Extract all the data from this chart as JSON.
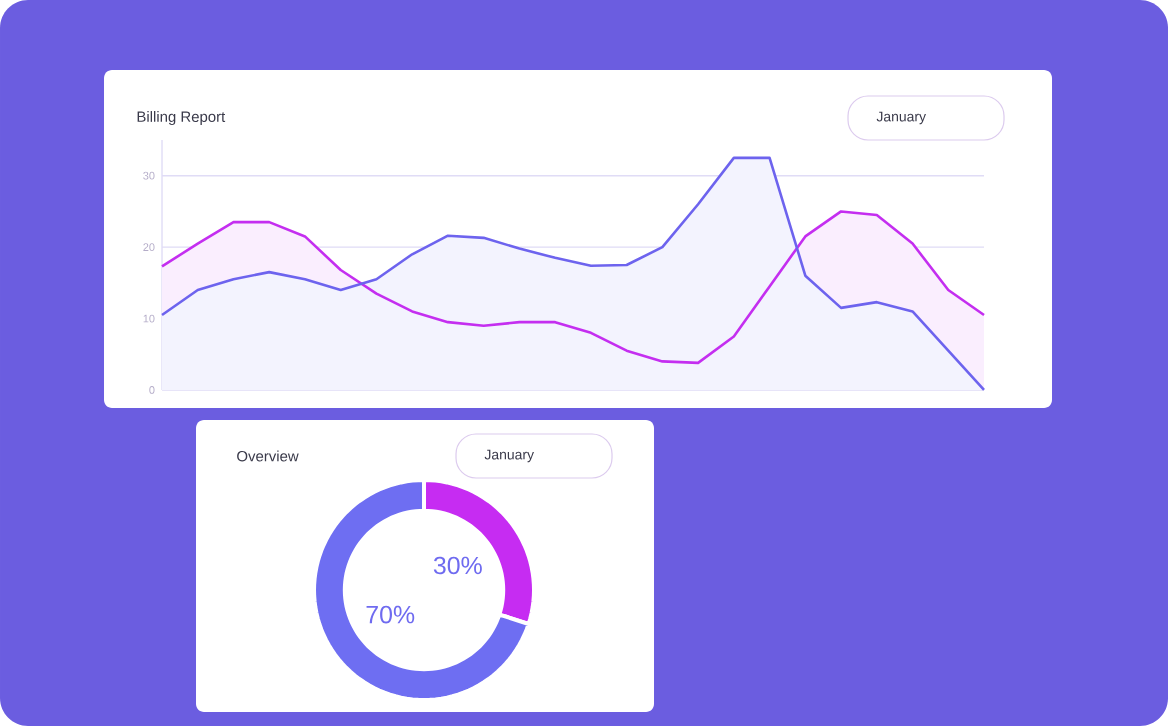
{
  "chart_data": [
    {
      "type": "line",
      "title": "Billing Report",
      "annotations": [
        "January"
      ],
      "categories": [
        null,
        null,
        null,
        null,
        null,
        null,
        null,
        null,
        null,
        null,
        null,
        null,
        null,
        null,
        null,
        null,
        null,
        null,
        null,
        null,
        null,
        null,
        null,
        null
      ],
      "ylim": [
        0,
        35
      ],
      "yticks": [
        0,
        10,
        20,
        30
      ],
      "grid": "y",
      "tick_labels": "y",
      "series": [
        {
          "type": "area",
          "color": "#c42ef0",
          "values": [
            17.3,
            20.5,
            23.5,
            23.5,
            21.5,
            16.8,
            13.5,
            11,
            9.5,
            9,
            9.5,
            9.5,
            8,
            5.5,
            4,
            3.8,
            7.5,
            14.5,
            21.5,
            25,
            24.5,
            20.5,
            14,
            10.5
          ]
        },
        {
          "type": "area",
          "color": "#6d63ee",
          "values": [
            10.5,
            14,
            15.5,
            16.5,
            15.5,
            14,
            15.5,
            19,
            21.6,
            21.3,
            19.8,
            18.5,
            17.4,
            17.5,
            20,
            26,
            32.5,
            32.5,
            16,
            11.5,
            12.3,
            11,
            5.5,
            0
          ]
        }
      ]
    },
    {
      "type": "donut",
      "title": "Overview",
      "annotations": [
        "January"
      ],
      "categories": [
        null,
        null
      ],
      "values": [
        30,
        70
      ],
      "colors": [
        "#c62cf2",
        "#6e6ef2"
      ],
      "value_labels": [
        "30%",
        "70%"
      ]
    }
  ]
}
